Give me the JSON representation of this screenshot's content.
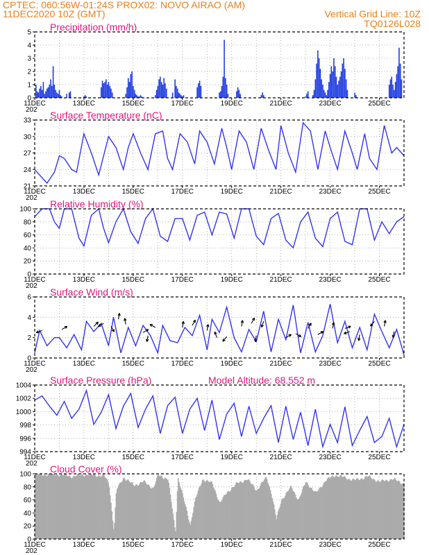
{
  "header": {
    "line1_left": "CPTEC:   060:56W-01:24S   PROX02: NOVO AIRAO (AM)",
    "line2_left": "11DEC2020 10Z (GMT)",
    "line2_right": "Vertical Grid Line: 10Z",
    "line3_right": "TQ0126L028"
  },
  "colors": {
    "series": "#3333ee",
    "bars": "#1f3ce0",
    "cloud": "#aaaaaa",
    "title": "#e0147c",
    "header": "#e8801a"
  },
  "x_ticks": [
    "11DEC",
    "13DEC",
    "15DEC",
    "17DEC",
    "19DEC",
    "21DEC",
    "23DEC",
    "25DEC"
  ],
  "x_extra_label": "202",
  "chart_data": [
    {
      "id": "precip",
      "type": "bar",
      "title": "Precipitation  (mm/h)",
      "yticks": [
        "0",
        "1",
        "2",
        "3",
        "4",
        "5"
      ],
      "ylim": [
        0,
        5
      ],
      "xlim": [
        0,
        15
      ],
      "x": [
        0.05,
        0.1,
        0.15,
        0.2,
        0.25,
        0.3,
        0.35,
        0.4,
        0.45,
        0.5,
        0.55,
        0.6,
        0.65,
        0.7,
        0.75,
        0.8,
        0.85,
        0.9,
        0.95,
        1.0,
        1.05,
        1.1,
        1.3,
        1.4,
        1.45,
        2.0,
        2.05,
        2.1,
        2.7,
        2.75,
        2.8,
        2.85,
        2.9,
        2.95,
        3.0,
        3.05,
        3.1,
        3.15,
        3.7,
        3.75,
        3.8,
        3.85,
        3.9,
        3.95,
        4.0,
        4.05,
        4.1,
        4.15,
        4.2,
        4.25,
        4.3,
        4.35,
        4.9,
        4.95,
        5.0,
        5.05,
        5.1,
        5.15,
        5.2,
        5.25,
        5.3,
        5.35,
        5.6,
        5.7,
        5.75,
        5.8,
        5.85,
        5.9,
        5.95,
        6.0,
        6.05,
        6.6,
        6.65,
        6.7,
        6.75,
        7.5,
        7.55,
        7.6,
        7.65,
        7.7,
        7.75,
        7.8,
        7.85,
        8.2,
        8.25,
        8.3,
        8.35,
        9.2,
        9.25,
        9.3,
        11.0,
        11.05,
        11.1,
        11.3,
        11.35,
        11.4,
        11.45,
        11.5,
        11.55,
        11.6,
        11.65,
        11.7,
        11.75,
        11.8,
        11.85,
        11.9,
        11.95,
        12.0,
        12.05,
        12.1,
        12.15,
        12.2,
        12.25,
        12.3,
        12.35,
        12.4,
        12.45,
        12.5,
        12.55,
        12.6,
        12.65,
        12.7,
        13.0,
        13.05,
        14.4,
        14.45,
        14.5,
        14.55,
        14.6,
        14.65,
        14.7,
        14.75,
        14.8,
        14.85,
        14.9
      ],
      "values": [
        1.0,
        0.5,
        0.4,
        0.7,
        0.9,
        0.6,
        1.2,
        0.3,
        0.5,
        0.7,
        0.8,
        1.0,
        1.4,
        0.9,
        2.4,
        1.0,
        0.6,
        0.4,
        0.3,
        0.6,
        0.2,
        0.1,
        0.3,
        0.4,
        0.5,
        0.1,
        0.2,
        0.1,
        0.8,
        1.3,
        1.1,
        1.2,
        1.4,
        1.0,
        1.2,
        0.9,
        0.7,
        0.4,
        0.3,
        0.8,
        1.5,
        1.2,
        1.8,
        2.0,
        0.9,
        0.6,
        0.3,
        0.2,
        0.1,
        0.1,
        0.2,
        0.1,
        0.2,
        0.6,
        0.9,
        1.4,
        1.6,
        1.2,
        1.0,
        1.5,
        1.1,
        0.7,
        0.4,
        1.4,
        0.9,
        0.7,
        0.4,
        0.3,
        0.2,
        0.1,
        0.2,
        0.8,
        1.1,
        1.3,
        0.9,
        0.4,
        0.5,
        0.9,
        1.6,
        4.4,
        1.5,
        1.0,
        0.3,
        0.5,
        0.8,
        0.6,
        0.3,
        0.2,
        0.4,
        0.2,
        0.1,
        0.3,
        0.5,
        0.2,
        0.6,
        1.4,
        2.6,
        3.6,
        3.0,
        2.2,
        1.4,
        1.0,
        0.6,
        0.4,
        0.2,
        0.6,
        1.2,
        1.8,
        2.4,
        2.0,
        3.0,
        2.4,
        1.6,
        1.0,
        1.3,
        1.6,
        2.0,
        2.6,
        3.0,
        2.2,
        1.4,
        0.6,
        0.4,
        0.2,
        1.0,
        1.4,
        1.6,
        1.0,
        0.6,
        1.2,
        1.8,
        2.4,
        3.8,
        2.6,
        1.4
      ]
    },
    {
      "id": "temp",
      "type": "line",
      "title": "Surface Temperature (nC)",
      "yticks": [
        "21",
        "24",
        "27",
        "30",
        "33"
      ],
      "ylim": [
        21,
        33
      ],
      "xlim": [
        0,
        15
      ],
      "x": [
        0,
        0.5,
        0.8,
        1.0,
        1.2,
        1.5,
        1.7,
        2.0,
        2.3,
        2.6,
        3.0,
        3.3,
        3.6,
        3.8,
        4.0,
        4.3,
        4.6,
        4.9,
        5.2,
        5.4,
        5.6,
        5.9,
        6.2,
        6.5,
        6.7,
        7.0,
        7.3,
        7.6,
        7.8,
        8.0,
        8.3,
        8.6,
        8.9,
        9.2,
        9.5,
        9.8,
        10.0,
        10.3,
        10.6,
        10.9,
        11.2,
        11.5,
        11.8,
        12.0,
        12.3,
        12.6,
        12.9,
        13.1,
        13.4,
        13.6,
        13.9,
        14.2,
        14.5,
        14.7,
        15.0
      ],
      "values": [
        24,
        21.5,
        23.5,
        26.5,
        26,
        24,
        23.5,
        30.5,
        27,
        23,
        30,
        28,
        24,
        28,
        30.5,
        27,
        24,
        30.5,
        31,
        26,
        24,
        30.5,
        29,
        25,
        31,
        29,
        25,
        31.5,
        28,
        24,
        31,
        29,
        24,
        31.5,
        27.5,
        24,
        32,
        27,
        23.5,
        32.5,
        31,
        24,
        31,
        28,
        24,
        31,
        27,
        24,
        30.5,
        26,
        24,
        32,
        27,
        28,
        26.5
      ]
    },
    {
      "id": "rh",
      "type": "line",
      "title": "Relative Humidity (%)",
      "yticks": [
        "0",
        "20",
        "40",
        "60",
        "80",
        "100"
      ],
      "ylim": [
        0,
        100
      ],
      "xlim": [
        0,
        15
      ],
      "x": [
        0,
        0.3,
        0.6,
        0.8,
        1.0,
        1.2,
        1.5,
        1.8,
        2.0,
        2.3,
        2.6,
        2.8,
        3.0,
        3.3,
        3.6,
        3.9,
        4.2,
        4.5,
        4.8,
        5.1,
        5.4,
        5.7,
        6.0,
        6.3,
        6.6,
        6.9,
        7.2,
        7.5,
        7.8,
        8.1,
        8.4,
        8.7,
        9.0,
        9.3,
        9.6,
        9.9,
        10.2,
        10.5,
        10.8,
        11.1,
        11.4,
        11.7,
        12.0,
        12.3,
        12.6,
        12.9,
        13.2,
        13.5,
        13.8,
        14.1,
        14.4,
        14.7,
        15.0
      ],
      "values": [
        88,
        100,
        100,
        80,
        70,
        100,
        100,
        55,
        43,
        90,
        100,
        70,
        48,
        80,
        100,
        65,
        47,
        85,
        100,
        58,
        50,
        85,
        85,
        52,
        90,
        95,
        60,
        95,
        92,
        55,
        100,
        100,
        58,
        45,
        85,
        93,
        52,
        40,
        80,
        95,
        55,
        42,
        85,
        95,
        50,
        45,
        100,
        100,
        52,
        80,
        62,
        80,
        88
      ]
    },
    {
      "id": "wind",
      "type": "line",
      "title": "Surface Wind  (m/s)",
      "yticks": [
        "0",
        "2",
        "4",
        "6"
      ],
      "ylim": [
        0,
        6
      ],
      "xlim": [
        0,
        15
      ],
      "x": [
        0,
        0.2,
        0.5,
        0.8,
        1.0,
        1.3,
        1.6,
        1.9,
        2.1,
        2.4,
        2.7,
        3.0,
        3.2,
        3.5,
        3.8,
        4.1,
        4.4,
        4.7,
        5.0,
        5.2,
        5.5,
        5.8,
        6.1,
        6.4,
        6.7,
        7.0,
        7.2,
        7.5,
        7.8,
        8.1,
        8.4,
        8.7,
        9.0,
        9.3,
        9.6,
        9.9,
        10.2,
        10.5,
        10.8,
        11.1,
        11.4,
        11.7,
        12.0,
        12.3,
        12.6,
        12.9,
        13.2,
        13.5,
        13.8,
        14.1,
        14.4,
        14.7,
        15.0
      ],
      "values": [
        0.5,
        2.7,
        1.2,
        2.0,
        2.0,
        1.0,
        2.3,
        0.8,
        3.6,
        2.6,
        3.4,
        1.2,
        4.0,
        0.5,
        3.0,
        1.2,
        3.2,
        2.2,
        0.5,
        3.2,
        1.7,
        1.5,
        3.0,
        2.2,
        4.2,
        0.8,
        3.8,
        2.5,
        5.0,
        2.0,
        0.6,
        2.8,
        1.6,
        4.6,
        0.6,
        3.8,
        1.8,
        5.2,
        0.5,
        3.5,
        0.6,
        2.2,
        5.3,
        1.5,
        3.6,
        1.0,
        3.0,
        0.8,
        4.3,
        2.6,
        1.0,
        2.8,
        0.3
      ],
      "arrows": [
        {
          "x": 0.3,
          "y": 2.7,
          "dir": 200
        },
        {
          "x": 1.1,
          "y": 2.8,
          "dir": 30
        },
        {
          "x": 2.4,
          "y": 3.1,
          "dir": 45
        },
        {
          "x": 2.8,
          "y": 3.4,
          "dir": 210
        },
        {
          "x": 3.1,
          "y": 3.1,
          "dir": 300
        },
        {
          "x": 3.4,
          "y": 3.8,
          "dir": 80
        },
        {
          "x": 3.7,
          "y": 3.3,
          "dir": 100
        },
        {
          "x": 4.4,
          "y": 2.5,
          "dir": 30
        },
        {
          "x": 4.6,
          "y": 2.2,
          "dir": 260
        },
        {
          "x": 4.9,
          "y": 3.0,
          "dir": 150
        },
        {
          "x": 6.0,
          "y": 3.0,
          "dir": 80
        },
        {
          "x": 6.4,
          "y": 3.2,
          "dir": 60
        },
        {
          "x": 7.0,
          "y": 2.7,
          "dir": 80
        },
        {
          "x": 7.4,
          "y": 2.0,
          "dir": 110
        },
        {
          "x": 7.8,
          "y": 2.1,
          "dir": 230
        },
        {
          "x": 8.4,
          "y": 3.1,
          "dir": 80
        },
        {
          "x": 8.8,
          "y": 3.4,
          "dir": 60
        },
        {
          "x": 9.0,
          "y": 2.2,
          "dir": 260
        },
        {
          "x": 9.3,
          "y": 3.6,
          "dir": 250
        },
        {
          "x": 10.2,
          "y": 2.0,
          "dir": 30
        },
        {
          "x": 10.6,
          "y": 2.4,
          "dir": 330
        },
        {
          "x": 11.1,
          "y": 2.9,
          "dir": 60
        },
        {
          "x": 11.5,
          "y": 2.3,
          "dir": 30
        },
        {
          "x": 12.1,
          "y": 2.9,
          "dir": 80
        },
        {
          "x": 12.6,
          "y": 2.9,
          "dir": 20
        },
        {
          "x": 12.8,
          "y": 2.6,
          "dir": 200
        },
        {
          "x": 13.2,
          "y": 2.3,
          "dir": 260
        },
        {
          "x": 13.8,
          "y": 3.6,
          "dir": 230
        },
        {
          "x": 14.2,
          "y": 3.1,
          "dir": 80
        },
        {
          "x": 14.6,
          "y": 2.6,
          "dir": 260
        }
      ]
    },
    {
      "id": "pres",
      "type": "line",
      "title": "Surface Pressure (hPa)",
      "annotation": "Model Altitude: 68.552  m",
      "yticks": [
        "994",
        "996",
        "998",
        "1000",
        "1002",
        "1004"
      ],
      "ylim": [
        994,
        1005
      ],
      "xlim": [
        0,
        15
      ],
      "x": [
        0,
        0.3,
        0.6,
        0.9,
        1.2,
        1.5,
        1.8,
        2.1,
        2.4,
        2.7,
        3.0,
        3.3,
        3.6,
        3.9,
        4.2,
        4.5,
        4.8,
        5.1,
        5.4,
        5.7,
        6.0,
        6.3,
        6.6,
        6.9,
        7.2,
        7.5,
        7.8,
        8.1,
        8.4,
        8.7,
        9.0,
        9.3,
        9.6,
        9.9,
        10.2,
        10.5,
        10.8,
        11.1,
        11.4,
        11.7,
        12.0,
        12.3,
        12.6,
        12.9,
        13.2,
        13.5,
        13.8,
        14.1,
        14.4,
        14.7,
        15.0
      ],
      "values": [
        1002.5,
        1003.2,
        1001.5,
        1000,
        1002.3,
        999.5,
        1001,
        1004.1,
        998.5,
        1000.5,
        1003.4,
        997.8,
        1001.5,
        1003.6,
        998,
        1001,
        1003.2,
        997,
        1001.6,
        1003,
        997,
        1001,
        1002.8,
        997.5,
        1002.5,
        996,
        1000.2,
        1002,
        996.5,
        1001.5,
        997,
        999.5,
        1001.6,
        995.5,
        1001.5,
        996,
        1000.5,
        995,
        1001,
        994.8,
        998.5,
        995.5,
        1001.4,
        995,
        997.5,
        999.8,
        995.5,
        996.5,
        999.5,
        994.8,
        998.5
      ]
    },
    {
      "id": "cloud",
      "type": "bar",
      "title": "Cloud Cover (%)",
      "yticks": [
        "0",
        "20",
        "40",
        "60",
        "80",
        "100"
      ],
      "ylim": [
        0,
        100
      ],
      "xlim": [
        0,
        15
      ],
      "profile": [
        {
          "x": 0.0,
          "v": 99
        },
        {
          "x": 1.0,
          "v": 99
        },
        {
          "x": 1.5,
          "v": 96
        },
        {
          "x": 2.0,
          "v": 99
        },
        {
          "x": 2.8,
          "v": 97
        },
        {
          "x": 3.0,
          "v": 85
        },
        {
          "x": 3.2,
          "v": 12
        },
        {
          "x": 3.3,
          "v": 75
        },
        {
          "x": 3.6,
          "v": 95
        },
        {
          "x": 4.0,
          "v": 82
        },
        {
          "x": 4.4,
          "v": 88
        },
        {
          "x": 4.8,
          "v": 78
        },
        {
          "x": 5.0,
          "v": 98
        },
        {
          "x": 5.4,
          "v": 92
        },
        {
          "x": 5.7,
          "v": 10
        },
        {
          "x": 5.8,
          "v": 95
        },
        {
          "x": 6.3,
          "v": 22
        },
        {
          "x": 6.5,
          "v": 60
        },
        {
          "x": 6.8,
          "v": 92
        },
        {
          "x": 7.2,
          "v": 85
        },
        {
          "x": 7.5,
          "v": 55
        },
        {
          "x": 7.8,
          "v": 72
        },
        {
          "x": 8.2,
          "v": 85
        },
        {
          "x": 8.6,
          "v": 92
        },
        {
          "x": 9.0,
          "v": 75
        },
        {
          "x": 9.4,
          "v": 95
        },
        {
          "x": 9.6,
          "v": 70
        },
        {
          "x": 9.8,
          "v": 30
        },
        {
          "x": 10.0,
          "v": 60
        },
        {
          "x": 10.4,
          "v": 80
        },
        {
          "x": 10.7,
          "v": 60
        },
        {
          "x": 11.0,
          "v": 88
        },
        {
          "x": 11.4,
          "v": 70
        },
        {
          "x": 11.8,
          "v": 90
        },
        {
          "x": 12.2,
          "v": 98
        },
        {
          "x": 12.6,
          "v": 94
        },
        {
          "x": 13.0,
          "v": 90
        },
        {
          "x": 13.5,
          "v": 96
        },
        {
          "x": 14.0,
          "v": 88
        },
        {
          "x": 14.5,
          "v": 92
        },
        {
          "x": 15.0,
          "v": 85
        }
      ]
    }
  ]
}
